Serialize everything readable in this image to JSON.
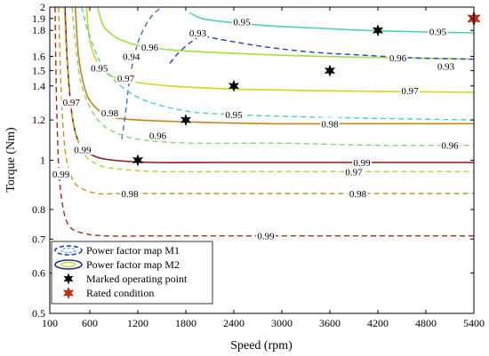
{
  "chart_data": {
    "type": "line",
    "title": "",
    "xlabel": "Speed (rpm)",
    "ylabel": "Torque (Nm)",
    "xlim": [
      100,
      5400
    ],
    "ylim": [
      0.5,
      2
    ],
    "y_scale": "log",
    "grid": false,
    "x_ticks": [
      "100",
      "600",
      "1200",
      "1800",
      "2400",
      "3000",
      "3600",
      "4200",
      "4800",
      "5400"
    ],
    "y_ticks": [
      "0.5",
      "0.6",
      "0.7",
      "0.8",
      "1",
      "1.2",
      "1.4",
      "1.5",
      "1.6",
      "1.8",
      "1.9",
      "2"
    ],
    "legend_position": "bottom-left",
    "legend": [
      {
        "label": "Power factor map M1",
        "style": "dashed-ellipse"
      },
      {
        "label": "Power factor map M2",
        "style": "solid-ellipse"
      },
      {
        "label": "Marked operating point",
        "style": "black-star"
      },
      {
        "label": "Rated condition",
        "style": "red-star"
      }
    ],
    "series_m1": [
      {
        "level": "0.93",
        "color": "#1f3fd6",
        "x": [
          1600,
          1700,
          1850,
          2000,
          2300,
          2800,
          3400,
          4000,
          4600,
          5400
        ],
        "y": [
          1.55,
          1.62,
          1.7,
          1.75,
          1.72,
          1.67,
          1.63,
          1.61,
          1.59,
          1.58
        ]
      },
      {
        "level": "0.94",
        "color": "#3f6fe0",
        "x": [
          1000,
          1050,
          1100,
          1200,
          1350,
          1500
        ],
        "y": [
          1.1,
          1.25,
          1.45,
          1.7,
          1.9,
          2.0
        ]
      },
      {
        "level": "0.95",
        "color": "#48d0c8",
        "x": [
          500,
          600,
          800,
          1200,
          1800,
          2400,
          3000,
          4000,
          5400
        ],
        "y": [
          2.0,
          1.75,
          1.5,
          1.33,
          1.25,
          1.23,
          1.22,
          1.21,
          1.2
        ]
      },
      {
        "level": "0.96",
        "color": "#7fdc6a",
        "x": [
          380,
          420,
          500,
          700,
          1000,
          1400,
          2000,
          3000,
          4200,
          5400
        ],
        "y": [
          2.0,
          1.7,
          1.4,
          1.2,
          1.12,
          1.09,
          1.08,
          1.08,
          1.07,
          1.07
        ]
      },
      {
        "level": "0.97",
        "color": "#b8cf3a",
        "x": [
          280,
          310,
          370,
          500,
          700,
          1000,
          1500,
          2500,
          4000,
          5400
        ],
        "y": [
          2.0,
          1.6,
          1.25,
          1.05,
          0.98,
          0.96,
          0.95,
          0.95,
          0.95,
          0.95
        ]
      },
      {
        "level": "0.98",
        "color": "#c8941e",
        "x": [
          210,
          240,
          290,
          380,
          500,
          700,
          1000,
          1500,
          2500,
          5400
        ],
        "y": [
          2.0,
          1.4,
          1.05,
          0.92,
          0.88,
          0.86,
          0.86,
          0.86,
          0.86,
          0.86
        ]
      },
      {
        "level": "0.99",
        "color": "#b02a14",
        "x": [
          165,
          185,
          215,
          270,
          350,
          500,
          800,
          1500,
          3000,
          5400
        ],
        "y": [
          2.0,
          1.3,
          0.95,
          0.8,
          0.74,
          0.72,
          0.71,
          0.71,
          0.71,
          0.71
        ]
      }
    ],
    "series_m2": [
      {
        "level": "0.95",
        "color": "#4fd0b8",
        "x": [
          1850,
          2000,
          2300,
          2800,
          3400,
          4000,
          4600,
          5400
        ],
        "y": [
          1.95,
          1.9,
          1.87,
          1.84,
          1.82,
          1.8,
          1.79,
          1.78
        ]
      },
      {
        "level": "0.96",
        "color": "#a2e03c",
        "x": [
          700,
          760,
          850,
          1000,
          1300,
          1800,
          2500,
          3500,
          4500,
          5400
        ],
        "y": [
          2.0,
          1.85,
          1.78,
          1.72,
          1.67,
          1.64,
          1.62,
          1.6,
          1.59,
          1.58
        ]
      },
      {
        "level": "0.97",
        "color": "#d2d818",
        "x": [
          560,
          600,
          700,
          850,
          1100,
          1600,
          2400,
          3500,
          5400
        ],
        "y": [
          2.0,
          1.72,
          1.55,
          1.47,
          1.43,
          1.4,
          1.38,
          1.37,
          1.36
        ]
      },
      {
        "level": "0.98",
        "color": "#c8841a",
        "x": [
          420,
          460,
          540,
          650,
          850,
          1200,
          1800,
          2800,
          4000,
          5400
        ],
        "y": [
          2.0,
          1.6,
          1.38,
          1.28,
          1.22,
          1.2,
          1.19,
          1.18,
          1.18,
          1.18
        ]
      },
      {
        "level": "0.99",
        "color": "#8e1818",
        "x": [
          290,
          320,
          380,
          480,
          650,
          900,
          1400,
          2200,
          3500,
          5400
        ],
        "y": [
          2.0,
          1.55,
          1.22,
          1.07,
          1.02,
          1.0,
          0.99,
          0.99,
          0.99,
          0.99
        ]
      }
    ],
    "m1_labels": [
      {
        "text": "0.93",
        "x": 1950,
        "y": 1.78
      },
      {
        "text": "0.93",
        "x": 5050,
        "y": 1.53
      },
      {
        "text": "0.94",
        "x": 1120,
        "y": 1.6
      },
      {
        "text": "0.95",
        "x": 2400,
        "y": 1.23
      },
      {
        "text": "0.95",
        "x": 720,
        "y": 1.52
      },
      {
        "text": "0.96",
        "x": 1450,
        "y": 1.12
      },
      {
        "text": "0.96",
        "x": 5100,
        "y": 1.07
      },
      {
        "text": "0.97",
        "x": 3900,
        "y": 0.95
      },
      {
        "text": "0.97",
        "x": 370,
        "y": 1.3
      },
      {
        "text": "0.98",
        "x": 3950,
        "y": 0.86
      },
      {
        "text": "0.98",
        "x": 1100,
        "y": 0.86
      },
      {
        "text": "0.99",
        "x": 2800,
        "y": 0.71
      },
      {
        "text": "0.99",
        "x": 240,
        "y": 0.94
      }
    ],
    "m2_labels": [
      {
        "text": "0.95",
        "x": 2500,
        "y": 1.87
      },
      {
        "text": "0.95",
        "x": 4950,
        "y": 1.79
      },
      {
        "text": "0.96",
        "x": 1350,
        "y": 1.67
      },
      {
        "text": "0.96",
        "x": 4450,
        "y": 1.59
      },
      {
        "text": "0.97",
        "x": 1050,
        "y": 1.45
      },
      {
        "text": "0.97",
        "x": 4600,
        "y": 1.37
      },
      {
        "text": "0.98",
        "x": 850,
        "y": 1.24
      },
      {
        "text": "0.98",
        "x": 3600,
        "y": 1.18
      },
      {
        "text": "0.99",
        "x": 4000,
        "y": 0.99
      },
      {
        "text": "0.99",
        "x": 510,
        "y": 1.05
      }
    ],
    "operating_points": [
      {
        "x": 1200,
        "y": 1.0
      },
      {
        "x": 1800,
        "y": 1.2
      },
      {
        "x": 2400,
        "y": 1.4
      },
      {
        "x": 3600,
        "y": 1.5
      },
      {
        "x": 4200,
        "y": 1.8
      }
    ],
    "rated_condition": {
      "x": 5400,
      "y": 1.9
    }
  }
}
